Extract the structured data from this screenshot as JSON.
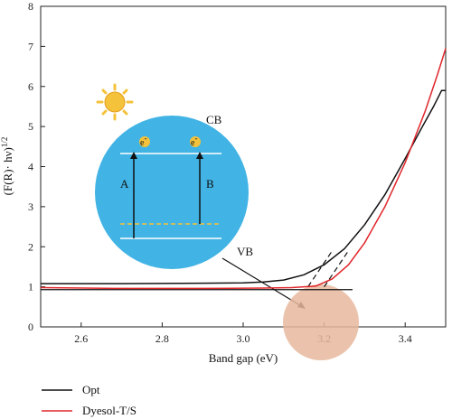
{
  "chart_data": {
    "type": "line",
    "xlabel": "Band gap (eV)",
    "ylabel_main": "(F(R)· hν)",
    "ylabel_exp": "1/2",
    "xlim": [
      2.5,
      3.5
    ],
    "ylim": [
      0,
      8
    ],
    "xticks": [
      2.6,
      2.8,
      3.0,
      3.2,
      3.4
    ],
    "yticks": [
      0,
      1,
      2,
      3,
      4,
      5,
      6,
      7,
      8
    ],
    "grid": false,
    "legend_position": "bottom-left",
    "series": [
      {
        "name": "Opt",
        "color": "#111111",
        "points": [
          [
            2.5,
            1.08
          ],
          [
            2.7,
            1.08
          ],
          [
            2.9,
            1.09
          ],
          [
            3.0,
            1.1
          ],
          [
            3.05,
            1.12
          ],
          [
            3.1,
            1.17
          ],
          [
            3.15,
            1.3
          ],
          [
            3.2,
            1.55
          ],
          [
            3.25,
            1.95
          ],
          [
            3.3,
            2.55
          ],
          [
            3.35,
            3.3
          ],
          [
            3.4,
            4.2
          ],
          [
            3.44,
            4.95
          ],
          [
            3.47,
            5.5
          ],
          [
            3.49,
            5.9
          ],
          [
            3.5,
            5.9
          ]
        ]
      },
      {
        "name": "Dyesol-T/S",
        "color": "#e0262b",
        "points": [
          [
            2.5,
            0.98
          ],
          [
            2.7,
            0.96
          ],
          [
            2.9,
            0.96
          ],
          [
            3.05,
            0.97
          ],
          [
            3.12,
            0.98
          ],
          [
            3.18,
            1.02
          ],
          [
            3.22,
            1.2
          ],
          [
            3.26,
            1.55
          ],
          [
            3.3,
            2.1
          ],
          [
            3.35,
            3.0
          ],
          [
            3.4,
            4.1
          ],
          [
            3.45,
            5.4
          ],
          [
            3.48,
            6.3
          ],
          [
            3.5,
            6.95
          ]
        ]
      }
    ],
    "tangents": [
      {
        "from": [
          3.16,
          1.0
        ],
        "to": [
          3.22,
          1.9
        ]
      },
      {
        "from": [
          3.2,
          1.0
        ],
        "to": [
          3.26,
          1.9
        ]
      }
    ],
    "baseline_line": {
      "from": [
        2.5,
        0.93
      ],
      "to": [
        3.27,
        0.93
      ]
    }
  },
  "inset": {
    "cb_label": "CB",
    "vb_label": "VB",
    "arrow_a_label": "A",
    "arrow_b_label": "B",
    "electron_symbol": "e",
    "electron_charge": "-",
    "circle_color": "#41b3e4",
    "sun_color": "#f4c23b",
    "zoom_circle_color": "#e7b89d"
  },
  "legend": [
    {
      "label": "Opt",
      "color": "#111111"
    },
    {
      "label": "Dyesol-T/S",
      "color": "#e0262b"
    }
  ]
}
